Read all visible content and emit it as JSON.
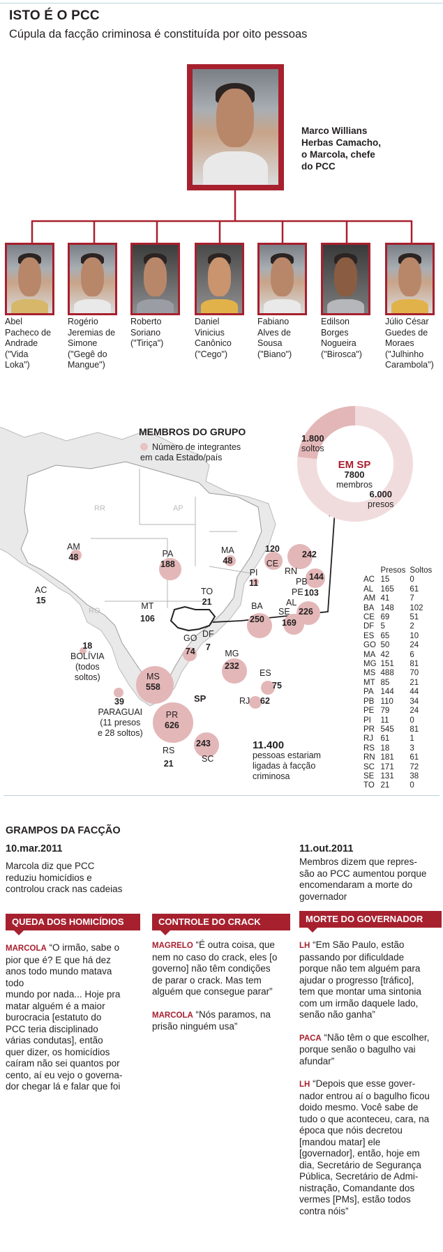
{
  "header": {
    "title": "ISTO É O PCC",
    "subtitle": "Cúpula da facção criminosa é constituída por oito pessoas"
  },
  "chief": {
    "name_lines": [
      "Marco Willians",
      "Herbas Camacho,",
      "o Marcola, chefe",
      "do PCC"
    ]
  },
  "members": [
    {
      "lines": [
        "Abel",
        "Pacheco de",
        "Andrade",
        "(\"Vida",
        "Loka\")"
      ]
    },
    {
      "lines": [
        "Rogério",
        "Jeremias de",
        "Simone",
        "(\"Gegê do",
        "Mangue\")"
      ]
    },
    {
      "lines": [
        "Roberto",
        "Soriano",
        "(\"Tiriça\")"
      ]
    },
    {
      "lines": [
        "Daniel",
        "Vinicius",
        "Canônico",
        "(\"Cego\")"
      ]
    },
    {
      "lines": [
        "Fabiano",
        "Alves de",
        "Sousa",
        "(\"Biano\")"
      ]
    },
    {
      "lines": [
        "Edilson",
        "Borges",
        "Nogueira",
        "(\"Birosca\")"
      ]
    },
    {
      "lines": [
        "Júlio César",
        "Guedes de",
        "Moraes",
        "(\"Julhinho",
        "Carambola\")"
      ]
    }
  ],
  "map": {
    "title": "MEMBROS DO GRUPO",
    "legend_lines": [
      "Número de integrantes",
      "em cada Estado/país"
    ],
    "faint_labels": [
      "RR",
      "AP",
      "RO"
    ],
    "states": [
      {
        "abbr": "AM",
        "value": "48"
      },
      {
        "abbr": "AC",
        "value": "15"
      },
      {
        "abbr": "PA",
        "value": "188"
      },
      {
        "abbr": "MA",
        "value": "48"
      },
      {
        "abbr": "CE",
        "value": "120"
      },
      {
        "abbr": "RN",
        "value": "242"
      },
      {
        "abbr": "PB",
        "value": "144"
      },
      {
        "abbr": "PE",
        "value": "103"
      },
      {
        "abbr": "AL",
        "value": "226"
      },
      {
        "abbr": "SE",
        "value": "169"
      },
      {
        "abbr": "PI",
        "value": "11"
      },
      {
        "abbr": "TO",
        "value": "21"
      },
      {
        "abbr": "BA",
        "value": "250"
      },
      {
        "abbr": "MT",
        "value": "106"
      },
      {
        "abbr": "GO",
        "value": "74"
      },
      {
        "abbr": "DF",
        "value": "7"
      },
      {
        "abbr": "MG",
        "value": "232"
      },
      {
        "abbr": "ES",
        "value": "75"
      },
      {
        "abbr": "RJ",
        "value": "62"
      },
      {
        "abbr": "MS",
        "value": "558"
      },
      {
        "abbr": "PR",
        "value": "626"
      },
      {
        "abbr": "SC",
        "value": "243"
      },
      {
        "abbr": "RS",
        "value": "21"
      }
    ],
    "bolivia": {
      "value": "18",
      "name": "BOLÍVIA",
      "note_lines": [
        "(todos",
        "soltos)"
      ]
    },
    "paraguai": {
      "value": "39",
      "name": "PARAGUAI",
      "note_lines": [
        "(11 presos",
        "e 28 soltos)"
      ]
    },
    "sp_label": "SP",
    "total": {
      "value": "11.400",
      "lines": [
        "pessoas estariam",
        "ligadas à facção",
        "criminosa"
      ]
    }
  },
  "sp_donut": {
    "title": "EM SP",
    "total": "7800",
    "total_label": "membros",
    "soltos_value": "1.800",
    "soltos_label": "soltos",
    "presos_value": "6.000",
    "presos_label": "presos",
    "colors": {
      "presos": "#f1dcdd",
      "soltos": "#e3b7b8",
      "title": "#a7202e"
    }
  },
  "chart_data": {
    "type": "pie",
    "title": "EM SP",
    "categories": [
      "soltos",
      "presos"
    ],
    "values": [
      1800,
      6000
    ]
  },
  "table": {
    "headers": [
      "",
      "Presos",
      "Soltos"
    ],
    "rows": [
      [
        "AC",
        "15",
        "0"
      ],
      [
        "AL",
        "165",
        "61"
      ],
      [
        "AM",
        "41",
        "7"
      ],
      [
        "BA",
        "148",
        "102"
      ],
      [
        "CE",
        "69",
        "51"
      ],
      [
        "DF",
        "5",
        "2"
      ],
      [
        "ES",
        "65",
        "10"
      ],
      [
        "GO",
        "50",
        "24"
      ],
      [
        "MA",
        "42",
        "6"
      ],
      [
        "MG",
        "151",
        "81"
      ],
      [
        "MS",
        "488",
        "70"
      ],
      [
        "MT",
        "85",
        "21"
      ],
      [
        "PA",
        "144",
        "44"
      ],
      [
        "PB",
        "110",
        "34"
      ],
      [
        "PE",
        "79",
        "24"
      ],
      [
        "PI",
        "11",
        "0"
      ],
      [
        "PR",
        "545",
        "81"
      ],
      [
        "RJ",
        "61",
        "1"
      ],
      [
        "RS",
        "18",
        "3"
      ],
      [
        "RN",
        "181",
        "61"
      ],
      [
        "SC",
        "171",
        "72"
      ],
      [
        "SE",
        "131",
        "38"
      ],
      [
        "TO",
        "21",
        "0"
      ]
    ]
  },
  "grampos": {
    "title": "GRAMPOS DA FACÇÃO",
    "left_date": "10.mar.2011",
    "left_intro_lines": [
      "Marcola diz que PCC",
      "reduziu homicídios e",
      "controlou crack nas cadeias"
    ],
    "right_date": "11.out.2011",
    "right_intro_lines": [
      "Membros dizem que repres-",
      "são ao PCC aumentou porque",
      "encomendaram a morte do",
      "governador"
    ],
    "col1": {
      "tag": "QUEDA DOS HOMICÍDIOS",
      "speaker": "MARCOLA",
      "lines": [
        "“O irmão, sabe o",
        "pior que é? E que há dez",
        "anos todo mundo matava",
        "todo",
        "mundo por nada... Hoje pra",
        "matar alguém é a maior",
        "burocracia [estatuto do",
        "PCC teria disciplinado",
        "várias condutas], então",
        "quer dizer, os homicídios",
        "caíram não sei quantos por",
        "cento, aí eu vejo o governa-",
        "dor chegar lá e falar que foi"
      ]
    },
    "col2": {
      "tag": "CONTROLE DO CRACK",
      "q1_speaker": "MAGRELO",
      "q1_lines": [
        "“É outra coisa, que",
        "nem no caso do crack, eles [o",
        "governo] não têm condições",
        "de parar o crack. Mas tem",
        "alguém que consegue parar”"
      ],
      "q2_speaker": "MARCOLA",
      "q2_lines": [
        "“Nós paramos, na",
        "prisão ninguém usa”"
      ]
    },
    "col3": {
      "tag": "MORTE DO GOVERNADOR",
      "q1_speaker": "LH",
      "q1_lines": [
        "“Em São Paulo, estão",
        "passando por dificuldade",
        "porque não tem alguém para",
        "ajudar o progresso [tráfico],",
        "tem que montar uma sintonia",
        "com um irmão daquele lado,",
        "senão não ganha”"
      ],
      "q2_speaker": "PACA",
      "q2_lines": [
        "“Não têm o que escolher,",
        "porque senão o bagulho vai",
        "afundar”"
      ],
      "q3_speaker": "LH",
      "q3_lines": [
        "“Depois que esse gover-",
        "nador entrou aí o bagulho ficou",
        "doido mesmo. Você sabe de",
        "tudo o que aconteceu, cara, na",
        "época que nóis decretou",
        "[mandou matar] ele",
        "[governador], então, hoje em",
        "dia, Secretário de Segurança",
        "Pública, Secretário de Admi-",
        "nistração, Comandante dos",
        "vermes [PMs], estão todos",
        "contra nóis”"
      ]
    }
  }
}
